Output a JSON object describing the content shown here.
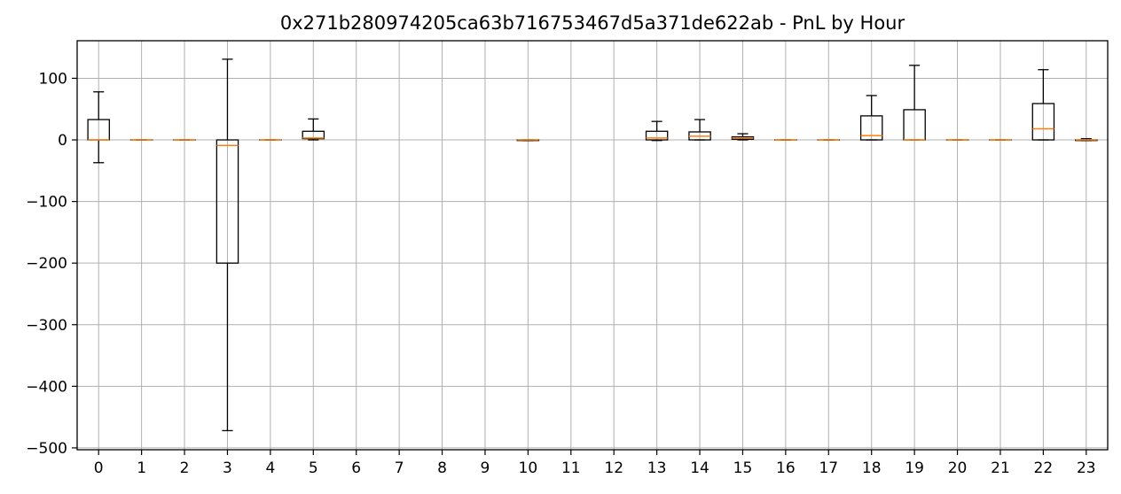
{
  "chart_data": {
    "type": "boxplot",
    "title": "0x271b280974205ca63b716753467d5a371de622ab - PnL by Hour",
    "xlabel": "",
    "ylabel": "",
    "ylim": [
      -503,
      161
    ],
    "yticks": [
      -500,
      -400,
      -300,
      -200,
      -100,
      0,
      100
    ],
    "ytick_labels": [
      "−500",
      "−400",
      "−300",
      "−200",
      "−100",
      "0",
      "100"
    ],
    "categories": [
      "0",
      "1",
      "2",
      "3",
      "4",
      "5",
      "6",
      "7",
      "8",
      "9",
      "10",
      "11",
      "12",
      "13",
      "14",
      "15",
      "16",
      "17",
      "18",
      "19",
      "20",
      "21",
      "22",
      "23"
    ],
    "grid": true,
    "box_color": "#000000",
    "median_color": "#ff7f0e",
    "grid_color": "#b0b0b0",
    "boxes": [
      {
        "hour": "0",
        "whislo": -37,
        "q1": 0,
        "med": 0,
        "q3": 33,
        "whishi": 78
      },
      {
        "hour": "1",
        "whislo": 0,
        "q1": 0,
        "med": 0,
        "q3": 0,
        "whishi": 0
      },
      {
        "hour": "2",
        "whislo": 0,
        "q1": 0,
        "med": 0,
        "q3": 0,
        "whishi": 0
      },
      {
        "hour": "3",
        "whislo": -472,
        "q1": -200,
        "med": -9,
        "q3": 0,
        "whishi": 131
      },
      {
        "hour": "4",
        "whislo": 0,
        "q1": 0,
        "med": 0,
        "q3": 0,
        "whishi": 0
      },
      {
        "hour": "5",
        "whislo": 0,
        "q1": 2,
        "med": 3,
        "q3": 14,
        "whishi": 34
      },
      {
        "hour": "6",
        "empty": true
      },
      {
        "hour": "7",
        "empty": true
      },
      {
        "hour": "8",
        "empty": true
      },
      {
        "hour": "9",
        "empty": true
      },
      {
        "hour": "10",
        "whislo": -1,
        "q1": -1,
        "med": 0,
        "q3": 0,
        "whishi": 0
      },
      {
        "hour": "11",
        "empty": true
      },
      {
        "hour": "12",
        "empty": true
      },
      {
        "hour": "13",
        "whislo": -1,
        "q1": 0,
        "med": 3,
        "q3": 14,
        "whishi": 30
      },
      {
        "hour": "14",
        "whislo": 0,
        "q1": 0,
        "med": 6,
        "q3": 13,
        "whishi": 33
      },
      {
        "hour": "15",
        "whislo": 0,
        "q1": 1,
        "med": 3,
        "q3": 5,
        "whishi": 10
      },
      {
        "hour": "16",
        "whislo": 0,
        "q1": 0,
        "med": 0,
        "q3": 0,
        "whishi": 0
      },
      {
        "hour": "17",
        "whislo": 0,
        "q1": 0,
        "med": 0,
        "q3": 0,
        "whishi": 0
      },
      {
        "hour": "18",
        "whislo": 0,
        "q1": 0,
        "med": 7,
        "q3": 39,
        "whishi": 72
      },
      {
        "hour": "19",
        "whislo": 0,
        "q1": 0,
        "med": 0,
        "q3": 49,
        "whishi": 121
      },
      {
        "hour": "20",
        "whislo": 0,
        "q1": 0,
        "med": 0,
        "q3": 0,
        "whishi": 0
      },
      {
        "hour": "21",
        "whislo": 0,
        "q1": 0,
        "med": 0,
        "q3": 0,
        "whishi": 0
      },
      {
        "hour": "22",
        "whislo": 0,
        "q1": 0,
        "med": 18,
        "q3": 59,
        "whishi": 114
      },
      {
        "hour": "23",
        "whislo": -1,
        "q1": -1,
        "med": 0,
        "q3": 0,
        "whishi": 2
      }
    ]
  }
}
